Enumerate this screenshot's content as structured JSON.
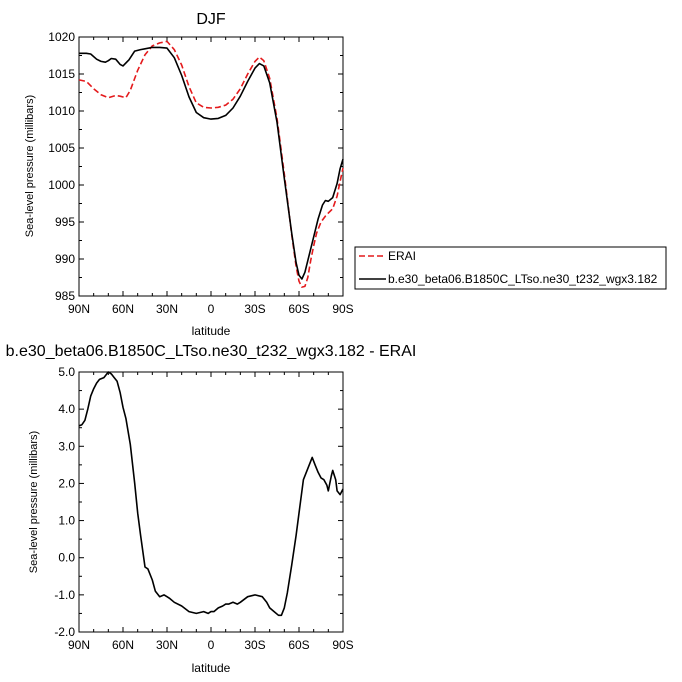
{
  "chart_data": [
    {
      "type": "line",
      "title": "DJF",
      "xlabel": "latitude",
      "ylabel": "Sea-level pressure (millibars)",
      "xlim": [
        90,
        -90
      ],
      "ylim": [
        985,
        1020
      ],
      "xticks": [
        90,
        60,
        30,
        0,
        -30,
        -60,
        -90
      ],
      "xtick_labels": [
        "90N",
        "60N",
        "30N",
        "0",
        "30S",
        "60S",
        "90S"
      ],
      "yticks": [
        985,
        990,
        995,
        1000,
        1005,
        1010,
        1015,
        1020
      ],
      "ytick_labels": [
        "985",
        "990",
        "995",
        "1000",
        "1005",
        "1010",
        "1015",
        "1020"
      ],
      "legend_position": "right-bottom, outside plot",
      "series": [
        {
          "name": "ERAI",
          "color": "#e41a1c",
          "dash": "dashed",
          "x": [
            90,
            85,
            80,
            75,
            70,
            65,
            62,
            58,
            55,
            50,
            45,
            40,
            35,
            30,
            25,
            20,
            15,
            10,
            5,
            0,
            -5,
            -10,
            -15,
            -20,
            -25,
            -30,
            -33,
            -36,
            -40,
            -45,
            -50,
            -55,
            -58,
            -60,
            -62,
            -64,
            -66,
            -68,
            -70,
            -72,
            -75,
            -78,
            -80,
            -83,
            -86,
            -88,
            -90
          ],
          "y": [
            1014.2,
            1014.0,
            1013.0,
            1012.2,
            1011.8,
            1012.1,
            1012.0,
            1011.8,
            1012.8,
            1015.5,
            1017.6,
            1018.8,
            1019.2,
            1019.4,
            1018.3,
            1016.2,
            1013.3,
            1011.1,
            1010.5,
            1010.4,
            1010.5,
            1010.8,
            1011.6,
            1013.0,
            1015.0,
            1016.7,
            1017.3,
            1016.8,
            1014.4,
            1009.0,
            1001.5,
            993.3,
            989.0,
            987.0,
            986.2,
            986.3,
            987.5,
            989.8,
            991.8,
            993.5,
            995.0,
            995.8,
            996.2,
            996.8,
            998.5,
            1000.5,
            1002.3
          ]
        },
        {
          "name": "b.e30_beta06.B1850C_LTso.ne30_t232_wgx3.182",
          "color": "#000000",
          "dash": "solid",
          "x": [
            90,
            85,
            82,
            78,
            75,
            72,
            70,
            68,
            65,
            62,
            60,
            56,
            52,
            48,
            45,
            40,
            35,
            30,
            25,
            20,
            15,
            10,
            5,
            0,
            -5,
            -10,
            -15,
            -20,
            -25,
            -30,
            -33,
            -36,
            -40,
            -45,
            -50,
            -55,
            -58,
            -60,
            -62,
            -64,
            -67,
            -70,
            -73,
            -76,
            -78,
            -80,
            -83,
            -86,
            -88,
            -90
          ],
          "y": [
            1017.8,
            1017.8,
            1017.7,
            1017.0,
            1016.7,
            1016.6,
            1016.8,
            1017.1,
            1017.0,
            1016.3,
            1016.1,
            1016.9,
            1018.1,
            1018.3,
            1018.4,
            1018.6,
            1018.6,
            1018.5,
            1017.2,
            1014.8,
            1011.9,
            1009.8,
            1009.1,
            1008.9,
            1009.0,
            1009.4,
            1010.4,
            1012.0,
            1014.0,
            1015.8,
            1016.4,
            1016.1,
            1013.8,
            1008.5,
            1000.9,
            993.5,
            989.5,
            987.8,
            987.3,
            988.2,
            990.6,
            993.0,
            995.4,
            997.3,
            997.9,
            997.8,
            998.3,
            1000.2,
            1002.2,
            1003.5
          ]
        }
      ]
    },
    {
      "type": "line",
      "title": "b.e30_beta06.B1850C_LTso.ne30_t232_wgx3.182 - ERAI",
      "xlabel": "latitude",
      "ylabel": "Sea-level pressure (millibars)",
      "xlim": [
        90,
        -90
      ],
      "ylim": [
        -2.0,
        5.0
      ],
      "xticks": [
        90,
        60,
        30,
        0,
        -30,
        -60,
        -90
      ],
      "xtick_labels": [
        "90N",
        "60N",
        "30N",
        "0",
        "30S",
        "60S",
        "90S"
      ],
      "yticks": [
        -2.0,
        -1.0,
        0.0,
        1.0,
        2.0,
        3.0,
        4.0,
        5.0
      ],
      "ytick_labels": [
        "-2.0",
        "-1.0",
        "0.0",
        "1.0",
        "2.0",
        "3.0",
        "4.0",
        "5.0"
      ],
      "series": [
        {
          "color": "#000000",
          "dash": "solid",
          "x": [
            90,
            88,
            86,
            84,
            82,
            80,
            78,
            76,
            73,
            70,
            68,
            66,
            64,
            62,
            60,
            58,
            55,
            52,
            50,
            48,
            45,
            43,
            40,
            38,
            35,
            32,
            30,
            28,
            25,
            20,
            15,
            10,
            5,
            2,
            0,
            -2,
            -5,
            -8,
            -10,
            -12,
            -15,
            -18,
            -20,
            -25,
            -30,
            -35,
            -38,
            -40,
            -43,
            -46,
            -48,
            -50,
            -52,
            -55,
            -58,
            -60,
            -63,
            -66,
            -69,
            -71,
            -73,
            -75,
            -77,
            -79,
            -80,
            -81,
            -82,
            -83,
            -85,
            -86,
            -87,
            -88,
            -90
          ],
          "y": [
            3.55,
            3.58,
            3.7,
            4.0,
            4.35,
            4.55,
            4.7,
            4.8,
            4.85,
            5.0,
            4.95,
            4.85,
            4.75,
            4.45,
            4.05,
            3.75,
            3.05,
            2.0,
            1.2,
            0.6,
            -0.25,
            -0.3,
            -0.6,
            -0.9,
            -1.05,
            -1.0,
            -1.05,
            -1.1,
            -1.2,
            -1.3,
            -1.45,
            -1.5,
            -1.45,
            -1.5,
            -1.45,
            -1.45,
            -1.35,
            -1.3,
            -1.25,
            -1.25,
            -1.2,
            -1.25,
            -1.2,
            -1.05,
            -1.0,
            -1.05,
            -1.2,
            -1.35,
            -1.45,
            -1.55,
            -1.55,
            -1.35,
            -0.95,
            -0.2,
            0.6,
            1.2,
            2.1,
            2.4,
            2.7,
            2.5,
            2.3,
            2.15,
            2.1,
            1.95,
            1.8,
            2.0,
            2.2,
            2.35,
            2.1,
            1.8,
            1.75,
            1.7,
            1.85
          ]
        }
      ]
    }
  ]
}
